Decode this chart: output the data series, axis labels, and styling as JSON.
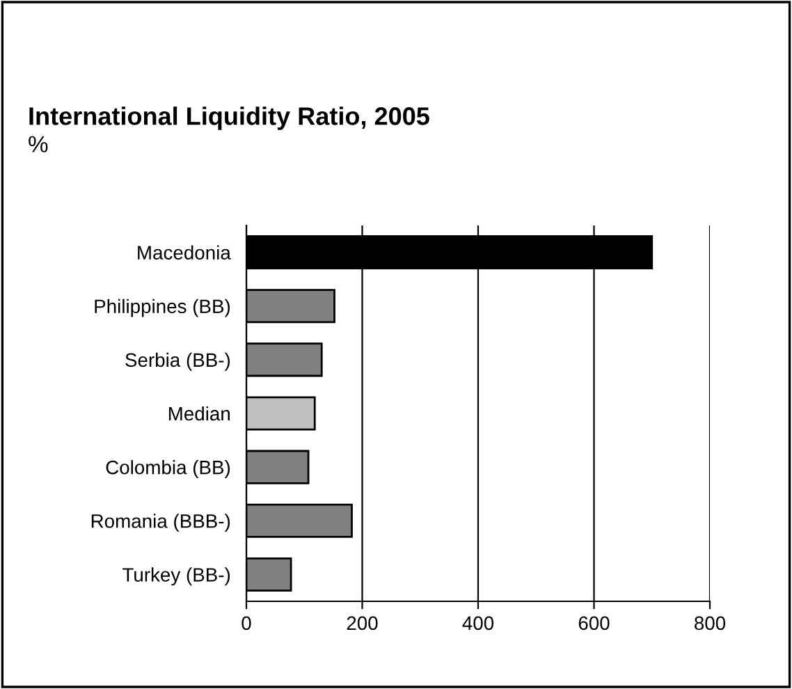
{
  "chart_data": {
    "type": "bar",
    "orientation": "horizontal",
    "title": "International Liquidity Ratio, 2005",
    "subtitle": "%",
    "categories": [
      "Macedonia",
      "Philippines (BB)",
      "Serbia (BB-)",
      "Median",
      "Colombia (BB)",
      "Romania (BBB-)",
      "Turkey (BB-)"
    ],
    "values": [
      700,
      152,
      130,
      118,
      107,
      182,
      77
    ],
    "colors": [
      "#000000",
      "#808080",
      "#808080",
      "#c0c0c0",
      "#808080",
      "#808080",
      "#808080"
    ],
    "xlim": [
      0,
      800
    ],
    "xticks": [
      0,
      200,
      400,
      600,
      800
    ],
    "grid": "x"
  }
}
